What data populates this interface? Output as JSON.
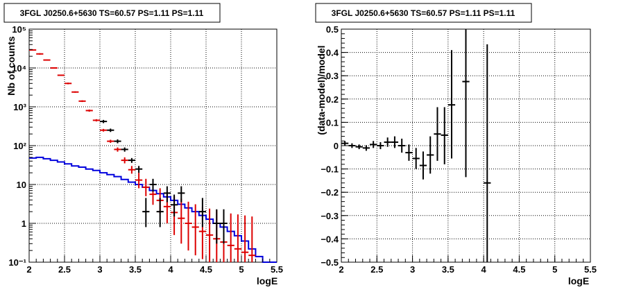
{
  "colors": {
    "data": "#000000",
    "model": "#dd0000",
    "component": "#0000dd",
    "grid": "#000000"
  },
  "chart_data": [
    {
      "type": "line",
      "title": "3FGL J0250.6+5630 TS=60.57 PS=1.11 PS=1.11",
      "xlabel": "logE",
      "ylabel": "Nb of counts",
      "yscale": "log",
      "xlim": [
        2,
        5.5
      ],
      "ylim": [
        0.1,
        100000
      ],
      "grid": true,
      "x_ticks": [
        "2",
        "2.5",
        "3",
        "3.5",
        "4",
        "4.5",
        "5",
        "5.5"
      ],
      "y_ticks": [
        "10⁻¹",
        "1",
        "10",
        "10²",
        "10³",
        "10⁴",
        "10⁵"
      ],
      "bin_edges": [
        2.0,
        2.1,
        2.2,
        2.3,
        2.4,
        2.5,
        2.6,
        2.7,
        2.8,
        2.9,
        3.0,
        3.1,
        3.2,
        3.3,
        3.4,
        3.5,
        3.6,
        3.7,
        3.8,
        3.9,
        4.0,
        4.1,
        4.2,
        4.3,
        4.4,
        4.5,
        4.6,
        4.7,
        4.8,
        4.9,
        5.0,
        5.1,
        5.2,
        5.3,
        5.4,
        5.5
      ],
      "series": [
        {
          "type": "step",
          "color": "#0000dd",
          "values": [
            48,
            50,
            46,
            42,
            38,
            34,
            30,
            28,
            25,
            23,
            20,
            18,
            16,
            13.5,
            11.5,
            10,
            8.5,
            7,
            5.8,
            4.8,
            3.9,
            3.1,
            2.5,
            2,
            1.6,
            1.28,
            1,
            0.8,
            0.62,
            0.48,
            0.35,
            0.22,
            0.14,
            0.1,
            0.1
          ]
        },
        {
          "type": "errorbar",
          "color": "#dd0000",
          "x": [
            2.05,
            2.15,
            2.25,
            2.35,
            2.45,
            2.55,
            2.65,
            2.75,
            2.85,
            2.95,
            3.05,
            3.15,
            3.25,
            3.35,
            3.45,
            3.55,
            3.65,
            3.75,
            3.85,
            3.95,
            4.05,
            4.15,
            4.25,
            4.35,
            4.45,
            4.55,
            4.65,
            4.75,
            4.85,
            4.95,
            5.05,
            5.15
          ],
          "y": [
            29000,
            23000,
            16000,
            10000,
            6500,
            4000,
            2400,
            1400,
            800,
            450,
            250,
            130,
            80,
            42,
            24,
            13,
            8.5,
            5.6,
            3.9,
            2.7,
            1.9,
            1.35,
            1,
            0.8,
            0.62,
            0.5,
            0.4,
            0.33,
            0.27,
            0.22,
            0.18,
            0.15
          ],
          "ylow": [
            28000,
            22000,
            15500,
            9700,
            6300,
            3800,
            2300,
            1330,
            750,
            420,
            230,
            118,
            70,
            35,
            19,
            8,
            5,
            3,
            1.8,
            1,
            0.5,
            0.3,
            0.2,
            0.15,
            0.12,
            0.1,
            0.1,
            0.1,
            0.1,
            0.1,
            0.1,
            0.1
          ],
          "yhigh": [
            30000,
            24000,
            16500,
            10300,
            6700,
            4200,
            2500,
            1470,
            850,
            480,
            270,
            142,
            90,
            50,
            30,
            20,
            14,
            10,
            8,
            6.5,
            5,
            4.3,
            3.6,
            3.1,
            2.7,
            2.4,
            2.2,
            2,
            1.8,
            1.7,
            1.6,
            1.5
          ]
        },
        {
          "type": "errorbar",
          "color": "#000000",
          "x": [
            3.05,
            3.15,
            3.25,
            3.35,
            3.45,
            3.55,
            3.65,
            3.75,
            3.85,
            3.95,
            4.05,
            4.15,
            4.45,
            4.65,
            4.75
          ],
          "y": [
            420,
            250,
            130,
            80,
            42,
            25,
            2,
            10,
            2,
            6,
            3,
            6,
            2,
            1,
            1
          ],
          "ylow": [
            380,
            225,
            115,
            70,
            36,
            20,
            0.8,
            6.5,
            0.8,
            3.5,
            1.5,
            3.5,
            0.8,
            0.3,
            0.3
          ],
          "yhigh": [
            460,
            275,
            145,
            90,
            48,
            30,
            4.5,
            14,
            4.5,
            9,
            5.5,
            9,
            4.5,
            2.3,
            2.3
          ]
        }
      ]
    },
    {
      "type": "scatter",
      "title": "3FGL J0250.6+5630 TS=60.57 PS=1.11 PS=1.11",
      "xlabel": "logE",
      "ylabel": "(data-model)/model",
      "xlim": [
        2,
        5.5
      ],
      "ylim": [
        -0.5,
        0.5
      ],
      "grid": true,
      "x_ticks": [
        "2",
        "2.5",
        "3",
        "3.5",
        "4",
        "4.5",
        "5",
        "5.5"
      ],
      "y_ticks": [
        "−0.5",
        "−0.4",
        "−0.3",
        "−0.2",
        "−0.1",
        "0",
        "0.1",
        "0.2",
        "0.3",
        "0.4",
        "0.5"
      ],
      "series": [
        {
          "type": "errorbar",
          "color": "#000000",
          "x": [
            2.05,
            2.15,
            2.25,
            2.35,
            2.45,
            2.55,
            2.65,
            2.75,
            2.85,
            2.95,
            3.05,
            3.15,
            3.25,
            3.35,
            3.45,
            3.55,
            3.75,
            4.05
          ],
          "y": [
            0.01,
            0.0,
            -0.005,
            -0.01,
            0.005,
            0.0,
            0.015,
            0.015,
            0.0,
            -0.03,
            -0.055,
            -0.085,
            -0.04,
            0.05,
            0.045,
            0.175,
            0.275,
            -0.16
          ],
          "ylow": [
            0.0,
            -0.01,
            -0.015,
            -0.022,
            -0.01,
            -0.015,
            -0.005,
            -0.01,
            -0.03,
            -0.065,
            -0.1,
            -0.145,
            -0.12,
            -0.065,
            -0.08,
            -0.055,
            -0.135,
            -0.5
          ],
          "yhigh": [
            0.02,
            0.01,
            0.005,
            0.002,
            0.02,
            0.015,
            0.035,
            0.04,
            0.03,
            0.005,
            -0.01,
            -0.025,
            0.04,
            0.165,
            0.165,
            0.41,
            0.5,
            0.435
          ]
        }
      ]
    }
  ]
}
